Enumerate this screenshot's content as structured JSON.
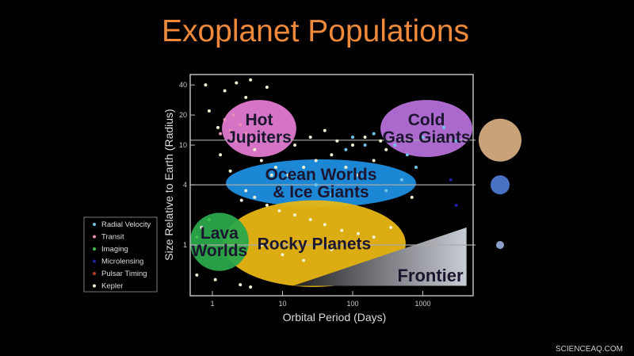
{
  "title": "Exoplanet Populations",
  "watermark": "SCIENCEAQ.COM",
  "colors": {
    "title": "#f08a3a",
    "background": "#000000",
    "Radial Velocity": "#6fc3e8",
    "Transit": "#e58fb8",
    "Imaging": "#3fbf4f",
    "Microlensing": "#2020a0",
    "Pulsar Timing": "#c0392b",
    "Kepler": "#f3efd0"
  },
  "legend": {
    "placement": "left",
    "items": [
      "Radial Velocity",
      "Transit",
      "Imaging",
      "Microlensing",
      "Pulsar Timing",
      "Kepler"
    ]
  },
  "chart_data": {
    "type": "scatter",
    "title": "Exoplanet Populations",
    "xlabel": "Orbital Period (Days)",
    "ylabel": "Size Relative to Earth (Radius)",
    "xscale": "log",
    "yscale": "log",
    "xlim": [
      0.48,
      5200
    ],
    "ylim": [
      0.31,
      51
    ],
    "xticks": [
      1,
      10,
      100,
      1000
    ],
    "xtick_labels": [
      "1",
      "10",
      "100",
      "1000"
    ],
    "yticks": [
      1,
      4,
      10,
      20,
      40
    ],
    "ytick_labels": [
      "1",
      "4",
      "10",
      "20",
      "40"
    ],
    "grid": false,
    "reference_lines_radius": [
      11.2,
      4,
      1
    ],
    "reference_bodies": [
      {
        "name": "jupiter",
        "radius": 11.2,
        "color": "#c9a27a"
      },
      {
        "name": "neptune",
        "radius": 4,
        "color": "#4a72c4"
      },
      {
        "name": "earth",
        "radius": 1,
        "color": "#8aa0c8"
      }
    ],
    "regions": [
      {
        "label_lines": [
          "Hot",
          "Jupiters"
        ],
        "shape": "ellipse",
        "period": [
          1.37,
          15.7
        ],
        "radius": [
          7.6,
          28.3
        ],
        "color": "#e07ad0"
      },
      {
        "label_lines": [
          "Cold",
          "Gas Giants"
        ],
        "shape": "ellipse",
        "period": [
          249,
          5100
        ],
        "radius": [
          7.6,
          28.3
        ],
        "color": "#b46fd8"
      },
      {
        "label_lines": [
          "Ocean Worlds",
          "& Ice Giants"
        ],
        "shape": "ellipse",
        "period": [
          1.56,
          800
        ],
        "radius": [
          2.4,
          7.2
        ],
        "color": "#1e8fe0"
      },
      {
        "label_lines": [
          "Rocky Planets"
        ],
        "shape": "ellipse",
        "period": [
          1.4,
          570
        ],
        "radius": [
          0.38,
          2.8
        ],
        "color": "#e8b514"
      },
      {
        "label_lines": [
          "Lava",
          "Worlds"
        ],
        "shape": "ellipse",
        "period": [
          0.48,
          3.3
        ],
        "radius": [
          0.55,
          2.1
        ],
        "color": "#2aa84a"
      },
      {
        "label_lines": [
          "Frontier"
        ],
        "shape": "triangle",
        "vertices": [
          [
            14.1,
            0.39
          ],
          [
            4200,
            1.5
          ],
          [
            4200,
            0.39
          ]
        ],
        "color": "#9aa0aa"
      }
    ],
    "series": [
      {
        "name": "Kepler",
        "points": [
          [
            0.8,
            40
          ],
          [
            1.5,
            35
          ],
          [
            2.2,
            42
          ],
          [
            3,
            30
          ],
          [
            0.9,
            22
          ],
          [
            1.2,
            15
          ],
          [
            2,
            12
          ],
          [
            4,
            9
          ],
          [
            5,
            7
          ],
          [
            8,
            6
          ],
          [
            12,
            5
          ],
          [
            20,
            6
          ],
          [
            30,
            7
          ],
          [
            50,
            8
          ],
          [
            80,
            6
          ],
          [
            120,
            5
          ],
          [
            200,
            7
          ],
          [
            300,
            9
          ],
          [
            15,
            10
          ],
          [
            25,
            12
          ],
          [
            40,
            14
          ],
          [
            60,
            11
          ],
          [
            100,
            10
          ],
          [
            150,
            12
          ],
          [
            250,
            11
          ],
          [
            0.7,
            1.5
          ],
          [
            0.6,
            0.5
          ],
          [
            1.1,
            0.45
          ],
          [
            2.5,
            0.4
          ],
          [
            3.5,
            0.38
          ],
          [
            3,
            3.5
          ],
          [
            4,
            3
          ],
          [
            6,
            2.5
          ],
          [
            9,
            2.2
          ],
          [
            15,
            2
          ],
          [
            25,
            1.8
          ],
          [
            40,
            1.6
          ],
          [
            70,
            1.4
          ],
          [
            120,
            1.3
          ],
          [
            200,
            1.2
          ],
          [
            350,
            1.5
          ],
          [
            5,
            1
          ],
          [
            10,
            0.8
          ],
          [
            20,
            0.7
          ],
          [
            50,
            0.9
          ],
          [
            7,
            5
          ],
          [
            1.8,
            5.5
          ],
          [
            2.6,
            2.8
          ],
          [
            700,
            3
          ],
          [
            1.3,
            8
          ],
          [
            3.5,
            45
          ],
          [
            6,
            38
          ]
        ]
      },
      {
        "name": "Transit",
        "points": [
          [
            1.5,
            18
          ],
          [
            1.8,
            14
          ],
          [
            2,
            20
          ],
          [
            2.5,
            16
          ],
          [
            3,
            13
          ],
          [
            1.3,
            13
          ],
          [
            2.2,
            11
          ]
        ]
      },
      {
        "name": "Radial Velocity",
        "points": [
          [
            100,
            12
          ],
          [
            150,
            10
          ],
          [
            200,
            13
          ],
          [
            80,
            9
          ],
          [
            600,
            8
          ],
          [
            1000,
            12
          ],
          [
            2000,
            15
          ],
          [
            3000,
            11
          ],
          [
            400,
            10
          ],
          [
            800,
            6
          ],
          [
            500,
            4.5
          ],
          [
            300,
            3.5
          ],
          [
            50,
            3.2
          ],
          [
            30,
            4
          ]
        ]
      },
      {
        "name": "Imaging",
        "points": [
          [
            0.6,
            1.2
          ],
          [
            0.9,
            1.8
          ]
        ]
      },
      {
        "name": "Microlensing",
        "points": [
          [
            2500,
            4.5
          ],
          [
            3000,
            2.5
          ]
        ]
      },
      {
        "name": "Pulsar Timing",
        "points": []
      }
    ]
  }
}
